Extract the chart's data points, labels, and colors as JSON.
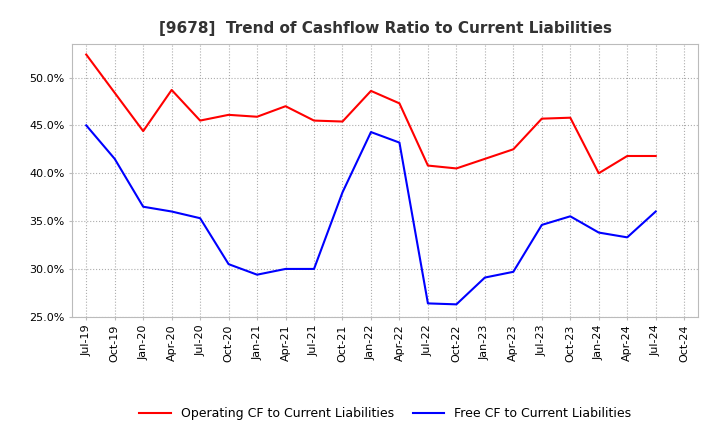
{
  "title": "[9678]  Trend of Cashflow Ratio to Current Liabilities",
  "xlabel": "",
  "ylabel": "",
  "ylim": [
    0.25,
    0.535
  ],
  "yticks": [
    0.25,
    0.3,
    0.35,
    0.4,
    0.45,
    0.5
  ],
  "background_color": "#ffffff",
  "plot_bg_color": "#ffffff",
  "grid_color": "#999999",
  "x_labels": [
    "Jul-19",
    "Oct-19",
    "Jan-20",
    "Apr-20",
    "Jul-20",
    "Oct-20",
    "Jan-21",
    "Apr-21",
    "Jul-21",
    "Oct-21",
    "Jan-22",
    "Apr-22",
    "Jul-22",
    "Oct-22",
    "Jan-23",
    "Apr-23",
    "Jul-23",
    "Oct-23",
    "Jan-24",
    "Apr-24",
    "Jul-24",
    "Oct-24"
  ],
  "operating_cf": [
    0.524,
    0.484,
    0.444,
    0.487,
    0.455,
    0.461,
    0.459,
    0.47,
    0.455,
    0.454,
    0.486,
    0.473,
    0.408,
    0.405,
    0.415,
    0.425,
    0.457,
    0.458,
    0.4,
    0.418,
    0.418,
    null
  ],
  "free_cf": [
    0.45,
    0.415,
    0.365,
    0.36,
    0.353,
    0.305,
    0.294,
    0.3,
    0.3,
    0.38,
    0.443,
    0.432,
    0.264,
    0.263,
    0.291,
    0.297,
    0.346,
    0.355,
    0.338,
    0.333,
    0.36,
    null
  ],
  "operating_color": "#ff0000",
  "free_color": "#0000ff",
  "legend_labels": [
    "Operating CF to Current Liabilities",
    "Free CF to Current Liabilities"
  ],
  "title_fontsize": 11,
  "tick_fontsize": 8,
  "legend_fontsize": 9
}
